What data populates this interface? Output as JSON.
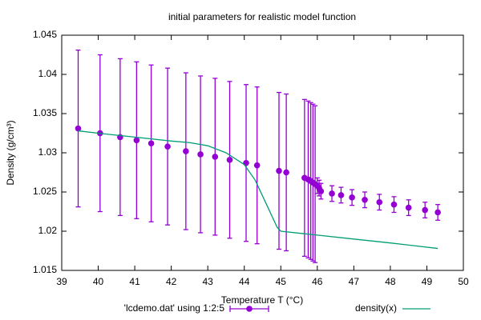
{
  "chart_data": {
    "type": "line",
    "title": "initial parameters for realistic model function",
    "x_label": "Temperature T (°C)",
    "y_label": "Density (g/cm³)",
    "xlim": [
      39,
      50
    ],
    "xticks": [
      39,
      40,
      41,
      42,
      43,
      44,
      45,
      46,
      47,
      48,
      49,
      50
    ],
    "ylim": [
      1.015,
      1.045
    ],
    "yticks": [
      1.015,
      1.02,
      1.025,
      1.03,
      1.035,
      1.04,
      1.045
    ],
    "legend": "bottom",
    "series": [
      {
        "name": "'lcdemo.dat' using 1:2:5",
        "style": "errorbars",
        "color": "#9400d3",
        "x": [
          39.45,
          40.05,
          40.6,
          41.05,
          41.45,
          41.9,
          42.4,
          42.8,
          43.2,
          43.6,
          44.05,
          44.35,
          44.95,
          45.15,
          45.65,
          45.75,
          45.82,
          45.88,
          45.94,
          46.0,
          46.05,
          46.1,
          46.4,
          46.65,
          46.95,
          47.3,
          47.7,
          48.1,
          48.5,
          48.95,
          49.3
        ],
        "values": [
          1.0331,
          1.0325,
          1.032,
          1.0316,
          1.0312,
          1.0308,
          1.0302,
          1.0298,
          1.0295,
          1.0291,
          1.0287,
          1.0284,
          1.0277,
          1.0275,
          1.0268,
          1.0266,
          1.0264,
          1.0262,
          1.026,
          1.0258,
          1.0255,
          1.0251,
          1.0248,
          1.0246,
          1.0243,
          1.024,
          1.0237,
          1.0234,
          1.023,
          1.0227,
          1.0224
        ],
        "errors": [
          0.01,
          0.01,
          0.01,
          0.01,
          0.01,
          0.01,
          0.01,
          0.01,
          0.01,
          0.01,
          0.01,
          0.01,
          0.01,
          0.01,
          0.01,
          0.01,
          0.01,
          0.01,
          0.01,
          0.001,
          0.001,
          0.001,
          0.001,
          0.001,
          0.001,
          0.001,
          0.001,
          0.001,
          0.001,
          0.001,
          0.001
        ]
      },
      {
        "name": "density(x)",
        "style": "line",
        "color": "#009e73",
        "x": [
          39.45,
          40,
          41,
          42,
          42.5,
          43,
          43.5,
          44,
          44.3,
          44.6,
          44.9,
          45,
          46,
          47,
          48,
          49.3
        ],
        "values": [
          1.0328,
          1.0325,
          1.032,
          1.0315,
          1.0313,
          1.0309,
          1.03,
          1.0285,
          1.0265,
          1.0235,
          1.0205,
          1.02,
          1.0195,
          1.019,
          1.0185,
          1.0178
        ]
      }
    ]
  }
}
